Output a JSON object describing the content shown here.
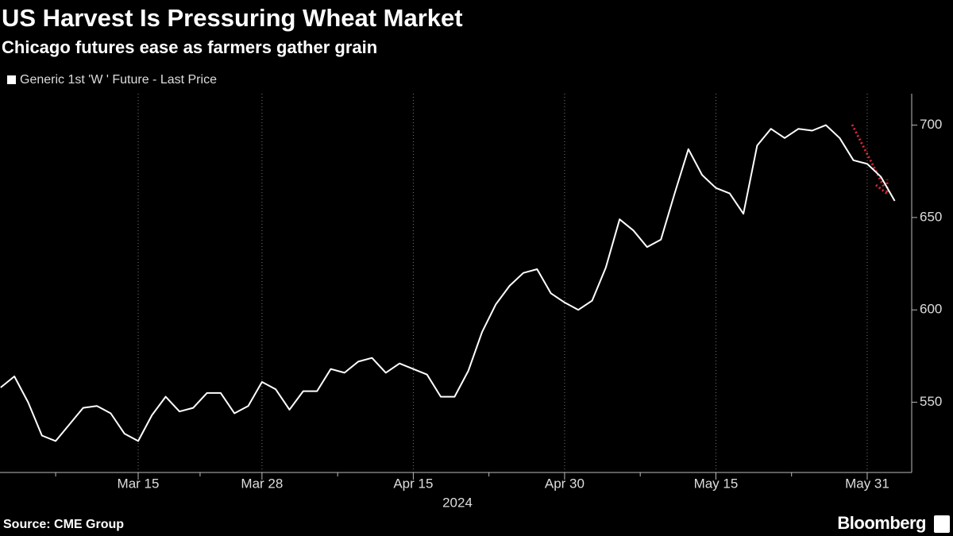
{
  "chart_data": {
    "type": "line",
    "title": "US Harvest Is Pressuring Wheat Market",
    "subtitle": "Chicago futures ease as farmers gather grain",
    "x_label": "2024",
    "source": "Source: CME Group",
    "brand": "Bloomberg",
    "categories": [
      null,
      null,
      null,
      null,
      null,
      null,
      null,
      null,
      null,
      null,
      "Mar 15",
      null,
      null,
      null,
      null,
      null,
      null,
      null,
      null,
      "Mar 28",
      null,
      null,
      null,
      null,
      null,
      null,
      null,
      null,
      null,
      null,
      "Apr 15",
      null,
      null,
      null,
      null,
      null,
      null,
      null,
      null,
      null,
      null,
      "Apr 30",
      null,
      null,
      null,
      null,
      null,
      null,
      null,
      null,
      null,
      null,
      "May 15",
      null,
      null,
      null,
      null,
      null,
      null,
      null,
      null,
      null,
      null,
      "May 31",
      null,
      null
    ],
    "series": [
      {
        "name": "Generic 1st 'W ' Future - Last Price",
        "color": "#ffffff",
        "values": [
          558,
          564,
          550,
          532,
          529,
          538,
          547,
          548,
          544,
          533,
          529,
          543,
          553,
          545,
          547,
          555,
          555,
          544,
          548,
          561,
          557,
          546,
          556,
          556,
          568,
          566,
          572,
          574,
          566,
          571,
          568,
          565,
          553,
          553,
          567,
          588,
          603,
          613,
          620,
          622,
          609,
          604,
          600,
          605,
          623,
          649,
          643,
          634,
          638,
          663,
          687,
          673,
          666,
          663,
          652,
          689,
          698,
          693,
          698,
          697,
          700,
          693,
          681,
          679,
          672,
          659
        ]
      }
    ],
    "ylim": [
      512,
      717
    ],
    "yticks": [
      550,
      600,
      650,
      700
    ],
    "grid": true
  }
}
